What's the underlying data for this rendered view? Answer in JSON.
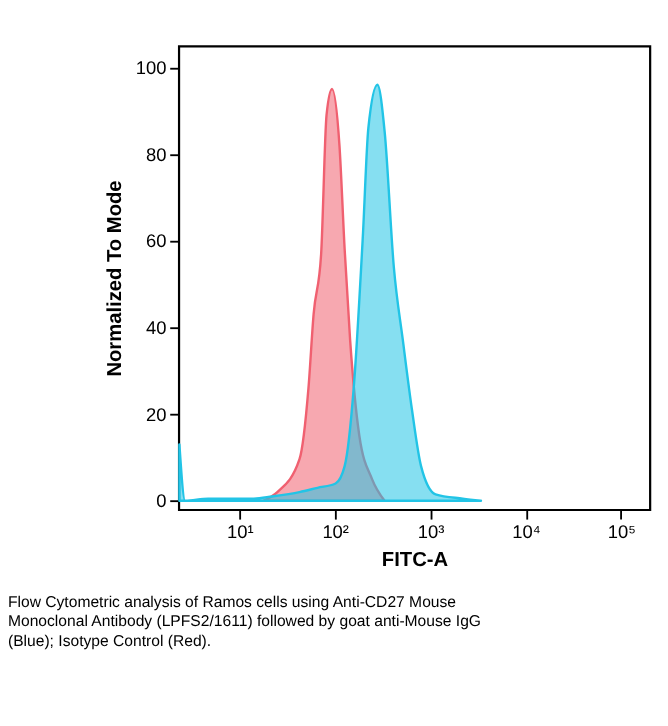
{
  "chart_data": {
    "type": "area",
    "xlabel": "FITC-A",
    "ylabel": "Normalized To Mode",
    "log": "x",
    "xlim": [
      2.3,
      200000
    ],
    "ylim": [
      -2,
      105
    ],
    "xticks": [
      {
        "value": 10,
        "label": "10¹"
      },
      {
        "value": 100,
        "label": "10²"
      },
      {
        "value": 1000,
        "label": "10³"
      },
      {
        "value": 10000,
        "label": "10⁴"
      },
      {
        "value": 100000,
        "label": "10⁵"
      }
    ],
    "yticks": [
      0,
      20,
      40,
      60,
      80,
      100
    ],
    "grid": false,
    "series": [
      {
        "color": "#f06070",
        "x": [
          17.7,
          25,
          42.7,
          53,
          60,
          72,
          82,
          93.6,
          112,
          127,
          145,
          181,
          246,
          333
        ],
        "values": [
          0,
          2,
          9.6,
          26,
          43,
          57,
          89,
          95,
          82,
          58,
          37,
          15,
          5,
          0
        ]
      },
      {
        "color": "#22c4e6",
        "x": [
          2.35,
          2.7,
          4.7,
          14.2,
          22,
          42.7,
          66,
          102,
          127,
          158,
          197,
          225,
          280,
          334,
          416,
          518,
          645,
          803,
          1140,
          2200,
          3410
        ],
        "values": [
          13,
          0,
          0.5,
          0.5,
          1,
          2,
          3,
          4,
          8,
          26,
          61,
          86,
          96,
          85,
          54,
          37,
          21,
          8,
          1.5,
          0.5,
          0
        ]
      }
    ],
    "annotations": [
      "Flow Cytometric analysis of Ramos cells using Anti-CD27 Mouse Monoclonal Antibody (LPFS2/1611) followed by goat anti-Mouse IgG (Blue); Isotype Control (Red)."
    ]
  }
}
